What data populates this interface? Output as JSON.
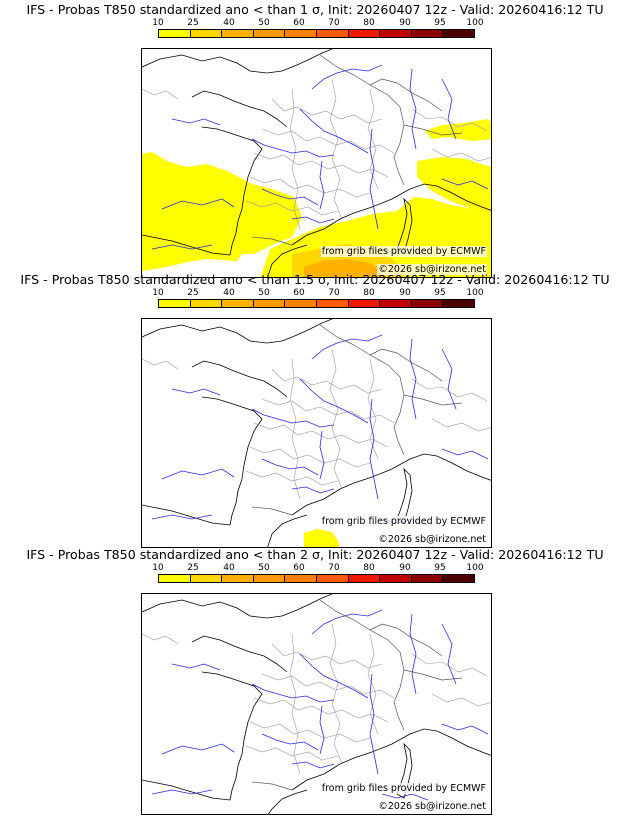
{
  "panels": [
    {
      "title": "IFS - Probas T850  standardized ano < than 1 σ, Init: 20260407 12z - Valid: 20260416:12 TU",
      "source": "from grib files provided by ECMWF",
      "copyright": "©2026 sb@irizone.net"
    },
    {
      "title": "IFS - Probas T850  standardized ano < than 1.5 σ, Init: 20260407 12z - Valid: 20260416:12 TU",
      "source": "from grib files provided by ECMWF",
      "copyright": "©2026 sb@irizone.net"
    },
    {
      "title": "IFS - Probas T850  standardized ano < than 2 σ, Init: 20260407 12z - Valid: 20260416:12 TU",
      "source": "from grib files provided by ECMWF",
      "copyright": "©2026 sb@irizone.net"
    }
  ],
  "scale": {
    "ticks": [
      "10",
      "25",
      "40",
      "50",
      "60",
      "70",
      "80",
      "90",
      "95",
      "100"
    ],
    "colors": [
      "#ffff00",
      "#ffd700",
      "#ffb000",
      "#ff9a00",
      "#ff8000",
      "#ff5a00",
      "#ee1a00",
      "#c00000",
      "#8b0000",
      "#4a0000"
    ]
  }
}
